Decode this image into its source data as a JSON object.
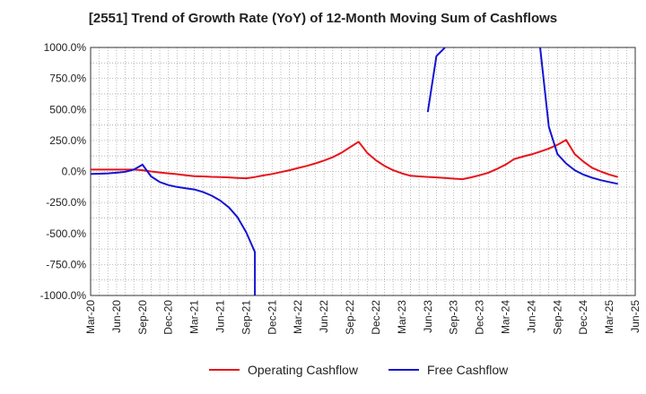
{
  "chart_data": {
    "type": "line",
    "title": "[2551]  Trend of Growth Rate (YoY) of 12-Month Moving Sum of Cashflows",
    "xlabel": "",
    "ylabel": "",
    "x_tick_labels": [
      "Mar-20",
      "Jun-20",
      "Sep-20",
      "Dec-20",
      "Mar-21",
      "Jun-21",
      "Sep-21",
      "Dec-21",
      "Mar-22",
      "Jun-22",
      "Sep-22",
      "Dec-22",
      "Mar-23",
      "Jun-23",
      "Sep-23",
      "Dec-23",
      "Mar-24",
      "Jun-24",
      "Sep-24",
      "Dec-24",
      "Mar-25",
      "Jun-25"
    ],
    "y_tick_labels": [
      "1000.0%",
      "750.0%",
      "500.0%",
      "250.0%",
      "0.0%",
      "-250.0%",
      "-500.0%",
      "-750.0%",
      "-1000.0%"
    ],
    "ylim": [
      -1000,
      1000
    ],
    "grid": true,
    "legend_position": "bottom",
    "series": [
      {
        "name": "Operating Cashflow",
        "color": "#e8141b",
        "points": [
          [
            "Mar-20",
            15
          ],
          [
            "Apr-20",
            15
          ],
          [
            "May-20",
            15
          ],
          [
            "Jun-20",
            15
          ],
          [
            "Jul-20",
            15
          ],
          [
            "Aug-20",
            15
          ],
          [
            "Sep-20",
            10
          ],
          [
            "Oct-20",
            0
          ],
          [
            "Nov-20",
            -8
          ],
          [
            "Dec-20",
            -15
          ],
          [
            "Jan-21",
            -22
          ],
          [
            "Feb-21",
            -30
          ],
          [
            "Mar-21",
            -38
          ],
          [
            "Apr-21",
            -40
          ],
          [
            "May-21",
            -43
          ],
          [
            "Jun-21",
            -45
          ],
          [
            "Jul-21",
            -48
          ],
          [
            "Aug-21",
            -52
          ],
          [
            "Sep-21",
            -55
          ],
          [
            "Oct-21",
            -45
          ],
          [
            "Nov-21",
            -32
          ],
          [
            "Dec-21",
            -20
          ],
          [
            "Jan-22",
            -5
          ],
          [
            "Feb-22",
            10
          ],
          [
            "Mar-22",
            28
          ],
          [
            "Apr-22",
            45
          ],
          [
            "May-22",
            65
          ],
          [
            "Jun-22",
            88
          ],
          [
            "Jul-22",
            115
          ],
          [
            "Aug-22",
            150
          ],
          [
            "Sep-22",
            195
          ],
          [
            "Oct-22",
            240
          ],
          [
            "Nov-22",
            150
          ],
          [
            "Dec-22",
            90
          ],
          [
            "Jan-23",
            45
          ],
          [
            "Feb-23",
            10
          ],
          [
            "Mar-23",
            -15
          ],
          [
            "Apr-23",
            -35
          ],
          [
            "May-23",
            -40
          ],
          [
            "Jun-23",
            -44
          ],
          [
            "Jul-23",
            -48
          ],
          [
            "Aug-23",
            -52
          ],
          [
            "Sep-23",
            -58
          ],
          [
            "Oct-23",
            -62
          ],
          [
            "Nov-23",
            -48
          ],
          [
            "Dec-23",
            -30
          ],
          [
            "Jan-24",
            -10
          ],
          [
            "Feb-24",
            20
          ],
          [
            "Mar-24",
            55
          ],
          [
            "Apr-24",
            100
          ],
          [
            "May-24",
            120
          ],
          [
            "Jun-24",
            138
          ],
          [
            "Jul-24",
            160
          ],
          [
            "Aug-24",
            185
          ],
          [
            "Sep-24",
            215
          ],
          [
            "Oct-24",
            255
          ],
          [
            "Nov-24",
            140
          ],
          [
            "Dec-24",
            80
          ],
          [
            "Jan-25",
            30
          ],
          [
            "Feb-25",
            0
          ],
          [
            "Mar-25",
            -25
          ],
          [
            "Apr-25",
            -45
          ]
        ]
      },
      {
        "name": "Free Cashflow",
        "color": "#1414d2",
        "segments": [
          [
            [
              "Mar-20",
              -20
            ],
            [
              "Apr-20",
              -18
            ],
            [
              "May-20",
              -15
            ],
            [
              "Jun-20",
              -10
            ],
            [
              "Jul-20",
              -3
            ],
            [
              "Aug-20",
              15
            ],
            [
              "Sep-20",
              55
            ],
            [
              "Oct-20",
              -40
            ],
            [
              "Nov-20",
              -85
            ],
            [
              "Dec-20",
              -110
            ],
            [
              "Jan-21",
              -125
            ],
            [
              "Feb-21",
              -135
            ],
            [
              "Mar-21",
              -145
            ],
            [
              "Apr-21",
              -165
            ],
            [
              "May-21",
              -195
            ],
            [
              "Jun-21",
              -235
            ],
            [
              "Jul-21",
              -290
            ],
            [
              "Aug-21",
              -370
            ],
            [
              "Sep-21",
              -490
            ],
            [
              "Oct-21",
              -650
            ],
            [
              "Oct-21",
              -1000
            ]
          ],
          [
            [
              "Jun-23",
              480
            ],
            [
              "Jul-23",
              930
            ],
            [
              "Aug-23",
              1000
            ]
          ],
          [
            [
              "Jul-24",
              1000
            ],
            [
              "Aug-24",
              360
            ],
            [
              "Sep-24",
              140
            ],
            [
              "Oct-24",
              65
            ],
            [
              "Nov-24",
              10
            ],
            [
              "Dec-24",
              -25
            ],
            [
              "Jan-25",
              -50
            ],
            [
              "Feb-25",
              -70
            ],
            [
              "Mar-25",
              -85
            ],
            [
              "Apr-25",
              -100
            ]
          ]
        ]
      }
    ]
  }
}
